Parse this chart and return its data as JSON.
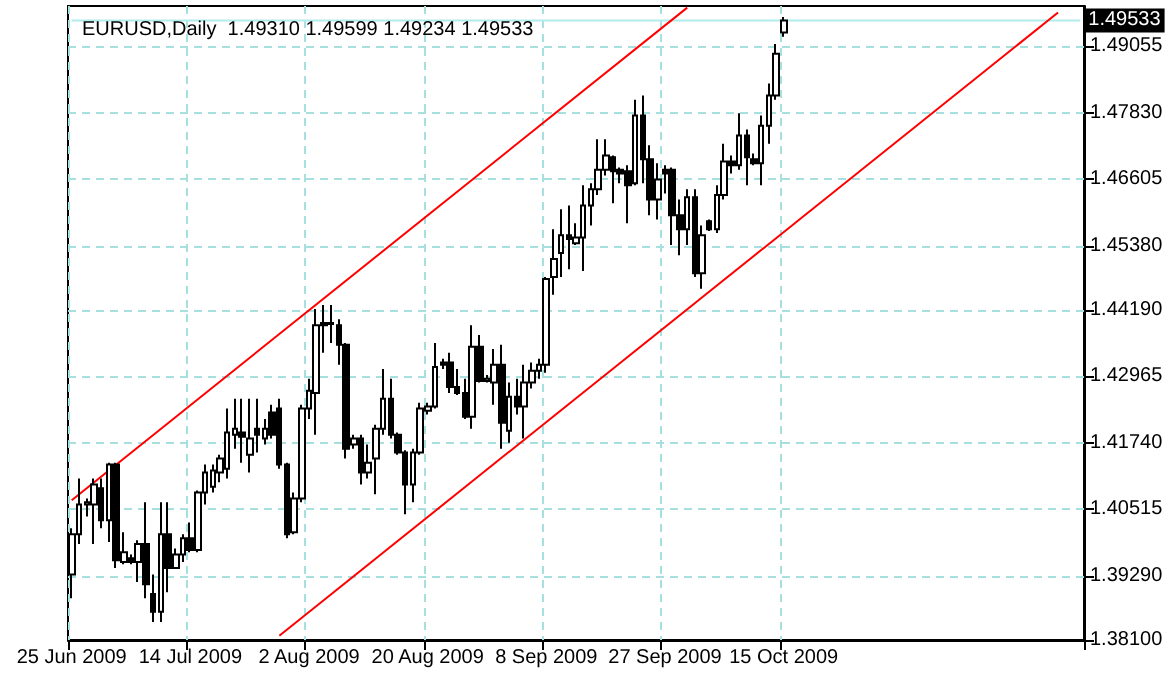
{
  "chart_data": {
    "type": "candlestick",
    "title": "EURUSD,Daily  1.49310 1.49599 1.49234 1.49533",
    "categories": [
      "25 Jun 2009",
      null,
      null,
      null,
      null,
      null,
      null,
      null,
      null,
      null,
      null,
      null,
      null,
      null,
      null,
      null,
      "14 Jul 2009",
      null,
      null,
      null,
      null,
      null,
      null,
      null,
      null,
      null,
      null,
      null,
      null,
      null,
      null,
      null,
      "2 Aug 2009",
      null,
      null,
      null,
      null,
      null,
      null,
      null,
      null,
      null,
      null,
      null,
      null,
      null,
      null,
      null,
      "20 Aug 2009",
      null,
      null,
      null,
      null,
      null,
      null,
      null,
      null,
      null,
      null,
      null,
      null,
      null,
      null,
      null,
      "8 Sep 2009",
      null,
      null,
      null,
      null,
      null,
      null,
      null,
      null,
      null,
      null,
      null,
      null,
      null,
      null,
      null,
      "27 Sep 2009",
      null,
      null,
      null,
      null,
      null,
      null,
      null,
      null,
      null,
      null,
      null,
      null,
      null,
      null,
      null,
      "15 Oct 2009",
      null,
      null,
      null,
      null,
      null,
      null,
      null,
      null,
      null,
      null,
      null,
      null,
      null,
      null,
      null,
      null,
      null,
      null,
      null,
      null,
      null,
      null,
      null,
      null,
      null,
      null,
      null,
      null,
      null,
      null,
      null,
      null,
      null,
      null,
      null,
      null,
      null,
      null,
      null,
      null
    ],
    "series": [
      {
        "color": "#000000",
        "ohlc": [
          [
            1.3931,
            1.4016,
            1.3887,
            1.4005
          ],
          [
            1.4005,
            1.4108,
            1.3987,
            1.406
          ],
          [
            1.406,
            1.4071,
            1.4038,
            1.4064
          ],
          [
            1.406,
            1.4108,
            1.3987,
            1.4097
          ],
          [
            1.409,
            1.4108,
            1.4016,
            1.4031
          ],
          [
            1.4031,
            1.4137,
            1.3991,
            1.4134
          ],
          [
            1.4134,
            1.4137,
            1.3943,
            1.3957
          ],
          [
            1.3954,
            1.4009,
            1.395,
            1.3972
          ],
          [
            1.3961,
            1.3968,
            1.395,
            1.3954
          ],
          [
            1.3954,
            1.3994,
            1.3917,
            1.3987
          ],
          [
            1.3987,
            1.4064,
            1.3887,
            1.3913
          ],
          [
            1.3895,
            1.3931,
            1.3843,
            1.3862
          ],
          [
            1.3862,
            1.4064,
            1.3843,
            1.4005
          ],
          [
            1.4005,
            1.4064,
            1.3898,
            1.3943
          ],
          [
            1.3943,
            1.3979,
            1.3943,
            1.3968
          ],
          [
            1.3968,
            1.4005,
            1.3954,
            1.3998
          ],
          [
            1.3998,
            1.4027,
            1.3972,
            1.3976
          ],
          [
            1.3976,
            1.4086,
            1.3972,
            1.4082
          ],
          [
            1.4082,
            1.4134,
            1.406,
            1.4119
          ],
          [
            1.4093,
            1.4134,
            1.4082,
            1.4123
          ],
          [
            1.4119,
            1.4152,
            1.4101,
            1.4145
          ],
          [
            1.4126,
            1.4237,
            1.4108,
            1.4193
          ],
          [
            1.4189,
            1.4255,
            1.4163,
            1.42
          ],
          [
            1.4193,
            1.4255,
            1.4137,
            1.4185
          ],
          [
            1.4152,
            1.4255,
            1.4119,
            1.4182
          ],
          [
            1.42,
            1.4255,
            1.4156,
            1.4189
          ],
          [
            1.4182,
            1.4218,
            1.4171,
            1.42
          ],
          [
            1.423,
            1.4244,
            1.4182,
            1.4189
          ],
          [
            1.4237,
            1.4255,
            1.4126,
            1.4134
          ],
          [
            1.4134,
            1.4137,
            1.3998,
            1.4005
          ],
          [
            1.4009,
            1.4082,
            1.4005,
            1.4071
          ],
          [
            1.4071,
            1.4244,
            1.4064,
            1.4237
          ],
          [
            1.4237,
            1.4292,
            1.4218,
            1.427
          ],
          [
            1.4266,
            1.4421,
            1.4189,
            1.4391
          ],
          [
            1.4395,
            1.4428,
            1.434,
            1.4391
          ],
          [
            1.4395,
            1.4428,
            1.4358,
            1.4393
          ],
          [
            1.4391,
            1.4402,
            1.4318,
            1.4355
          ],
          [
            1.4355,
            1.4358,
            1.4145,
            1.4163
          ],
          [
            1.4171,
            1.4189,
            1.4163,
            1.4182
          ],
          [
            1.4182,
            1.4189,
            1.4097,
            1.4119
          ],
          [
            1.4119,
            1.4171,
            1.4108,
            1.4137
          ],
          [
            1.4145,
            1.4207,
            1.4079,
            1.42
          ],
          [
            1.42,
            1.431,
            1.4189,
            1.4255
          ],
          [
            1.4255,
            1.4292,
            1.4182,
            1.4189
          ],
          [
            1.4189,
            1.4193,
            1.4152,
            1.4156
          ],
          [
            1.4156,
            1.416,
            1.4042,
            1.4097
          ],
          [
            1.4097,
            1.4163,
            1.4064,
            1.4156
          ],
          [
            1.4156,
            1.4248,
            1.4152,
            1.4237
          ],
          [
            1.4233,
            1.4248,
            1.4226,
            1.4241
          ],
          [
            1.4241,
            1.4358,
            1.4237,
            1.4314
          ],
          [
            1.4322,
            1.4329,
            1.431,
            1.4318
          ],
          [
            1.4322,
            1.434,
            1.4266,
            1.4277
          ],
          [
            1.4277,
            1.431,
            1.4262,
            1.4266
          ],
          [
            1.4266,
            1.4292,
            1.4218,
            1.4222
          ],
          [
            1.4222,
            1.4391,
            1.42,
            1.4351
          ],
          [
            1.4351,
            1.4373,
            1.4285,
            1.4288
          ],
          [
            1.4288,
            1.4299,
            1.4285,
            1.4292
          ],
          [
            1.4285,
            1.4347,
            1.4244,
            1.4318
          ],
          [
            1.4318,
            1.4355,
            1.4163,
            1.4211
          ],
          [
            1.4196,
            1.4285,
            1.4174,
            1.4259
          ],
          [
            1.4259,
            1.4292,
            1.4226,
            1.4241
          ],
          [
            1.4241,
            1.4318,
            1.4182,
            1.4285
          ],
          [
            1.4285,
            1.4322,
            1.4274,
            1.4307
          ],
          [
            1.4307,
            1.4329,
            1.4292,
            1.4318
          ],
          [
            1.4318,
            1.448,
            1.4303,
            1.4476
          ],
          [
            1.448,
            1.4568,
            1.4447,
            1.4513
          ],
          [
            1.4524,
            1.4605,
            1.448,
            1.4557
          ],
          [
            1.4557,
            1.4612,
            1.4494,
            1.455
          ],
          [
            1.4542,
            1.4579,
            1.4539,
            1.4553
          ],
          [
            1.4553,
            1.4649,
            1.4491,
            1.4612
          ],
          [
            1.4612,
            1.4653,
            1.4575,
            1.4642
          ],
          [
            1.4642,
            1.4734,
            1.4631,
            1.4678
          ],
          [
            1.4678,
            1.4734,
            1.4667,
            1.4704
          ],
          [
            1.4701,
            1.4704,
            1.4616,
            1.4675
          ],
          [
            1.4678,
            1.4682,
            1.4653,
            1.4671
          ],
          [
            1.4675,
            1.4686,
            1.4579,
            1.4649
          ],
          [
            1.4653,
            1.4807,
            1.4649,
            1.4778
          ],
          [
            1.4778,
            1.4815,
            1.4653,
            1.4697
          ],
          [
            1.4697,
            1.4723,
            1.4594,
            1.4623
          ],
          [
            1.4623,
            1.469,
            1.4586,
            1.466
          ],
          [
            1.4678,
            1.4686,
            1.4634,
            1.4671
          ],
          [
            1.4678,
            1.4682,
            1.4539,
            1.4594
          ],
          [
            1.4594,
            1.4623,
            1.452,
            1.4568
          ],
          [
            1.4568,
            1.4642,
            1.4539,
            1.4627
          ],
          [
            1.4627,
            1.4642,
            1.448,
            1.4487
          ],
          [
            1.4487,
            1.4575,
            1.4458,
            1.4557
          ],
          [
            1.4583,
            1.4586,
            1.4565,
            1.4568
          ],
          [
            1.4568,
            1.4649,
            1.4561,
            1.4631
          ],
          [
            1.4631,
            1.4726,
            1.4623,
            1.4693
          ],
          [
            1.4693,
            1.4704,
            1.4671,
            1.4686
          ],
          [
            1.4686,
            1.4782,
            1.4678,
            1.4741
          ],
          [
            1.4741,
            1.4752,
            1.4649,
            1.4701
          ],
          [
            1.4697,
            1.4708,
            1.4686,
            1.469
          ],
          [
            1.469,
            1.4778,
            1.4649,
            1.4759
          ],
          [
            1.4759,
            1.4837,
            1.4726,
            1.4815
          ],
          [
            1.4815,
            1.491,
            1.4807,
            1.4892
          ],
          [
            1.4931,
            1.49599,
            1.49234,
            1.49533
          ],
          null,
          null,
          null,
          null,
          null,
          null,
          null,
          null,
          null,
          null,
          null,
          null,
          null,
          null,
          null,
          null,
          null,
          null,
          null,
          null,
          null,
          null,
          null,
          null,
          null,
          null,
          null,
          null,
          null,
          null,
          null,
          null,
          null,
          null,
          null,
          null,
          null,
          null,
          null,
          null
        ]
      },
      {
        "type": "line",
        "color": "#ff0000",
        "values": [
          1.4068,
          null,
          null,
          null,
          null,
          null,
          null,
          null,
          null,
          null,
          null,
          null,
          null,
          null,
          null,
          null,
          null,
          null,
          null,
          null,
          null,
          null,
          null,
          null,
          null,
          null,
          null,
          null,
          null,
          null,
          null,
          null,
          null,
          null,
          null,
          null,
          null,
          null,
          null,
          null,
          null,
          null,
          null,
          null,
          null,
          null,
          null,
          null,
          null,
          null,
          null,
          null,
          null,
          null,
          null,
          null,
          null,
          null,
          null,
          null,
          null,
          null,
          null,
          null,
          null,
          null,
          null,
          null,
          null,
          null,
          null,
          null,
          null,
          null,
          null,
          null,
          null,
          null,
          null,
          null,
          null,
          null,
          null,
          1.4977,
          null,
          null,
          null,
          null,
          null,
          null,
          null,
          null,
          null,
          null,
          null,
          null,
          null,
          null,
          null,
          null,
          null,
          null,
          null,
          null,
          null,
          null,
          null,
          null,
          null,
          null,
          null,
          null,
          null,
          null,
          null,
          null,
          null,
          null,
          null,
          null,
          null,
          null,
          null,
          null,
          null,
          null,
          null,
          null,
          null,
          null,
          null,
          null,
          null,
          null,
          null,
          null,
          null
        ]
      },
      {
        "type": "line",
        "color": "#ff0000",
        "values": [
          null,
          null,
          null,
          null,
          null,
          null,
          null,
          null,
          null,
          null,
          null,
          null,
          null,
          null,
          null,
          null,
          null,
          null,
          null,
          null,
          null,
          null,
          null,
          null,
          null,
          null,
          null,
          null,
          1.3818,
          null,
          null,
          null,
          null,
          null,
          null,
          null,
          null,
          null,
          null,
          null,
          null,
          null,
          null,
          null,
          null,
          null,
          null,
          null,
          null,
          null,
          null,
          null,
          null,
          null,
          null,
          null,
          null,
          null,
          null,
          null,
          null,
          null,
          null,
          null,
          null,
          null,
          null,
          null,
          null,
          null,
          null,
          null,
          null,
          null,
          null,
          null,
          null,
          null,
          null,
          null,
          null,
          null,
          null,
          null,
          null,
          null,
          null,
          null,
          null,
          null,
          null,
          null,
          null,
          null,
          null,
          null,
          null,
          null,
          null,
          null,
          null,
          null,
          null,
          null,
          null,
          null,
          null,
          null,
          null,
          null,
          null,
          null,
          null,
          null,
          null,
          null,
          null,
          null,
          null,
          null,
          null,
          null,
          null,
          null,
          null,
          null,
          null,
          null,
          null,
          null,
          null,
          null,
          null,
          1.4968,
          null,
          null,
          null
        ]
      }
    ],
    "ylim": [
      1.381,
      1.498
    ],
    "yticks": [
      {
        "value": 1.381,
        "label": "1.38100"
      },
      {
        "value": 1.3929,
        "label": "1.39290"
      },
      {
        "value": 1.40515,
        "label": "1.40515"
      },
      {
        "value": 1.4174,
        "label": "1.41740"
      },
      {
        "value": 1.42965,
        "label": "1.42965"
      },
      {
        "value": 1.4419,
        "label": "1.44190"
      },
      {
        "value": 1.4538,
        "label": "1.45380"
      },
      {
        "value": 1.46605,
        "label": "1.46605"
      },
      {
        "value": 1.4783,
        "label": "1.47830"
      },
      {
        "value": 1.49055,
        "label": "1.49055"
      }
    ],
    "ref_lines": [
      {
        "axis": "y",
        "value": 1.49533,
        "label": "1.49533",
        "color": "#b0ecec"
      }
    ],
    "grid": true,
    "marker": "none"
  }
}
